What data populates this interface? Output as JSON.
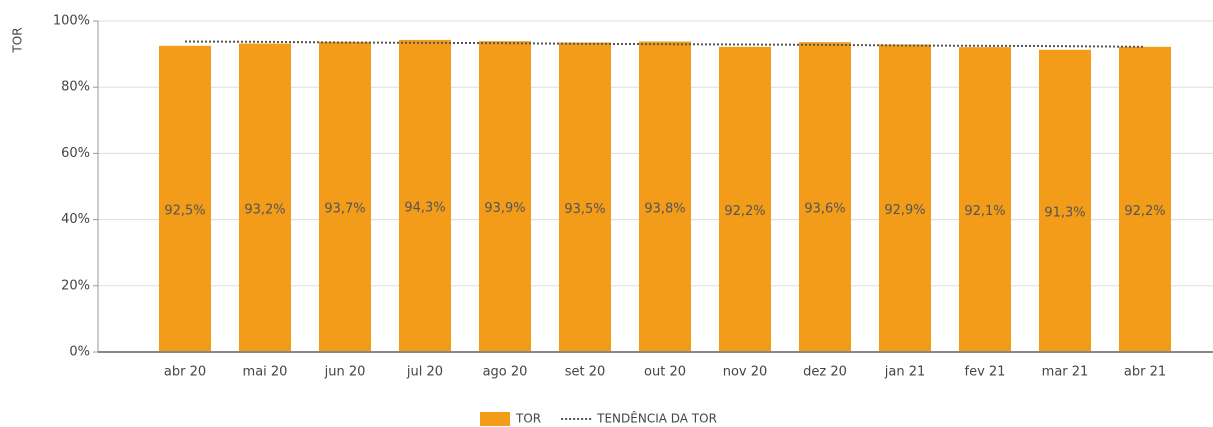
{
  "chart_data": {
    "type": "bar",
    "y_label": "TOR",
    "categories": [
      "abr 20",
      "mai 20",
      "jun 20",
      "jul 20",
      "ago 20",
      "set 20",
      "out 20",
      "nov 20",
      "dez 20",
      "jan 21",
      "fev 21",
      "mar 21",
      "abr 21"
    ],
    "series": [
      {
        "name": "TOR",
        "color": "#f39c1a",
        "values": [
          92.5,
          93.2,
          93.7,
          94.3,
          93.9,
          93.5,
          93.8,
          92.2,
          93.6,
          92.9,
          92.1,
          91.3,
          92.2
        ],
        "value_labels": [
          "92,5%",
          "93,2%",
          "93,7%",
          "94,3%",
          "93,9%",
          "93,5%",
          "93,8%",
          "92,2%",
          "93,6%",
          "92,9%",
          "92,1%",
          "91,3%",
          "92,2%"
        ]
      },
      {
        "name": "TENDÊNCIA DA TOR",
        "type": "line",
        "style": "dotted",
        "color": "#555555",
        "values": [
          93.8,
          93.7,
          93.5,
          93.4,
          93.3,
          93.1,
          93.0,
          92.9,
          92.8,
          92.6,
          92.5,
          92.4,
          92.2
        ]
      }
    ],
    "ylim": [
      0,
      100
    ],
    "yticks": [
      {
        "value": 0,
        "label": "0%"
      },
      {
        "value": 20,
        "label": "20%"
      },
      {
        "value": 40,
        "label": "40%"
      },
      {
        "value": 60,
        "label": "60%"
      },
      {
        "value": 80,
        "label": "80%"
      },
      {
        "value": 100,
        "label": "100%"
      }
    ],
    "grid": true,
    "legend": "bottom"
  }
}
